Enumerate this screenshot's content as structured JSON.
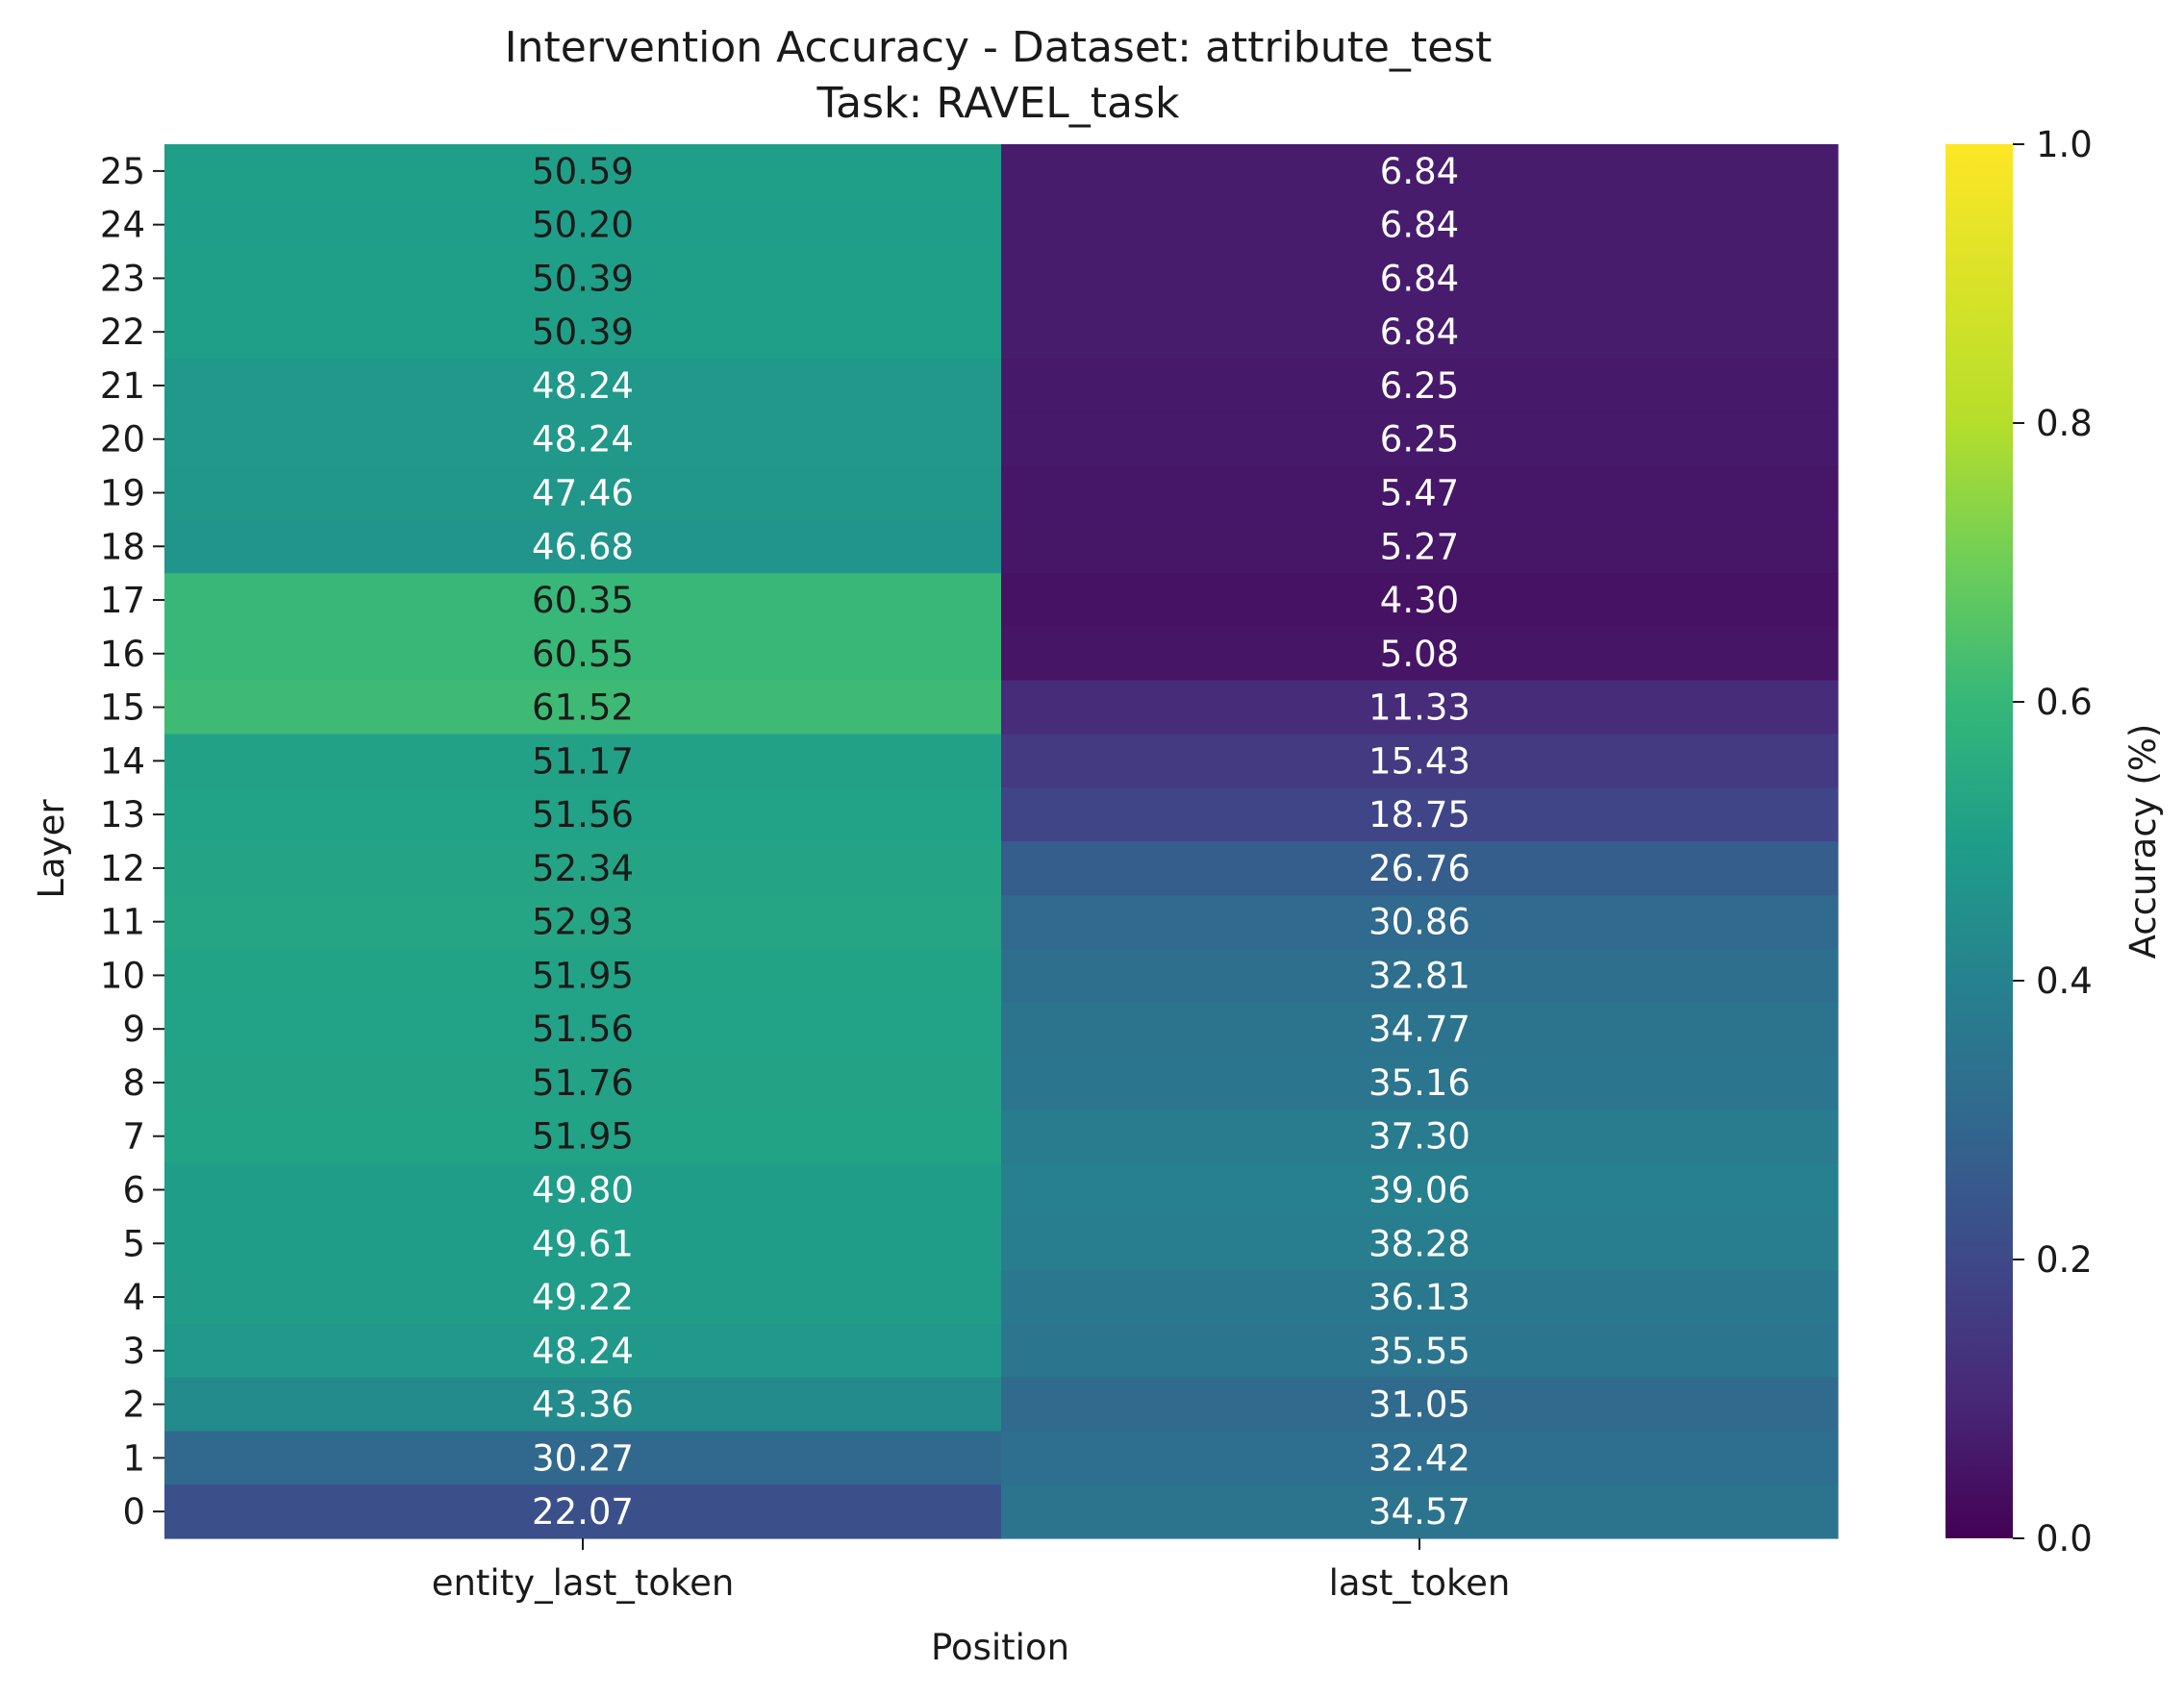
{
  "chart_data": {
    "type": "heatmap",
    "title": "Intervention Accuracy - Dataset: attribute_test",
    "subtitle": "Task: RAVEL_task",
    "xlabel": "Position",
    "ylabel": "Layer",
    "columns": [
      "entity_last_token",
      "last_token"
    ],
    "rows": [
      "25",
      "24",
      "23",
      "22",
      "21",
      "20",
      "19",
      "18",
      "17",
      "16",
      "15",
      "14",
      "13",
      "12",
      "11",
      "10",
      "9",
      "8",
      "7",
      "6",
      "5",
      "4",
      "3",
      "2",
      "1",
      "0"
    ],
    "values": [
      [
        50.59,
        6.84
      ],
      [
        50.2,
        6.84
      ],
      [
        50.39,
        6.84
      ],
      [
        50.39,
        6.84
      ],
      [
        48.24,
        6.25
      ],
      [
        48.24,
        6.25
      ],
      [
        47.46,
        5.47
      ],
      [
        46.68,
        5.27
      ],
      [
        60.35,
        4.3
      ],
      [
        60.55,
        5.08
      ],
      [
        61.52,
        11.33
      ],
      [
        51.17,
        15.43
      ],
      [
        51.56,
        18.75
      ],
      [
        52.34,
        26.76
      ],
      [
        52.93,
        30.86
      ],
      [
        51.95,
        32.81
      ],
      [
        51.56,
        34.77
      ],
      [
        51.76,
        35.16
      ],
      [
        51.95,
        37.3
      ],
      [
        49.8,
        39.06
      ],
      [
        49.61,
        38.28
      ],
      [
        49.22,
        36.13
      ],
      [
        48.24,
        35.55
      ],
      [
        43.36,
        31.05
      ],
      [
        30.27,
        32.42
      ],
      [
        22.07,
        34.57
      ]
    ],
    "labels": [
      [
        "50.59",
        "6.84"
      ],
      [
        "50.20",
        "6.84"
      ],
      [
        "50.39",
        "6.84"
      ],
      [
        "50.39",
        "6.84"
      ],
      [
        "48.24",
        "6.25"
      ],
      [
        "48.24",
        "6.25"
      ],
      [
        "47.46",
        "5.47"
      ],
      [
        "46.68",
        "5.27"
      ],
      [
        "60.35",
        "4.30"
      ],
      [
        "60.55",
        "5.08"
      ],
      [
        "61.52",
        "11.33"
      ],
      [
        "51.17",
        "15.43"
      ],
      [
        "51.56",
        "18.75"
      ],
      [
        "52.34",
        "26.76"
      ],
      [
        "52.93",
        "30.86"
      ],
      [
        "51.95",
        "32.81"
      ],
      [
        "51.56",
        "34.77"
      ],
      [
        "51.76",
        "35.16"
      ],
      [
        "51.95",
        "37.30"
      ],
      [
        "49.80",
        "39.06"
      ],
      [
        "49.61",
        "38.28"
      ],
      [
        "49.22",
        "36.13"
      ],
      [
        "48.24",
        "35.55"
      ],
      [
        "43.36",
        "31.05"
      ],
      [
        "30.27",
        "32.42"
      ],
      [
        "22.07",
        "34.57"
      ]
    ],
    "value_scale": 0.01,
    "colormap": "viridis",
    "colorbar": {
      "label": "Accuracy (%)",
      "range": [
        0.0,
        1.0
      ],
      "ticks": [
        "0.0",
        "0.2",
        "0.4",
        "0.6",
        "0.8",
        "1.0"
      ],
      "tick_values": [
        0.0,
        0.2,
        0.4,
        0.6,
        0.8,
        1.0
      ]
    }
  }
}
